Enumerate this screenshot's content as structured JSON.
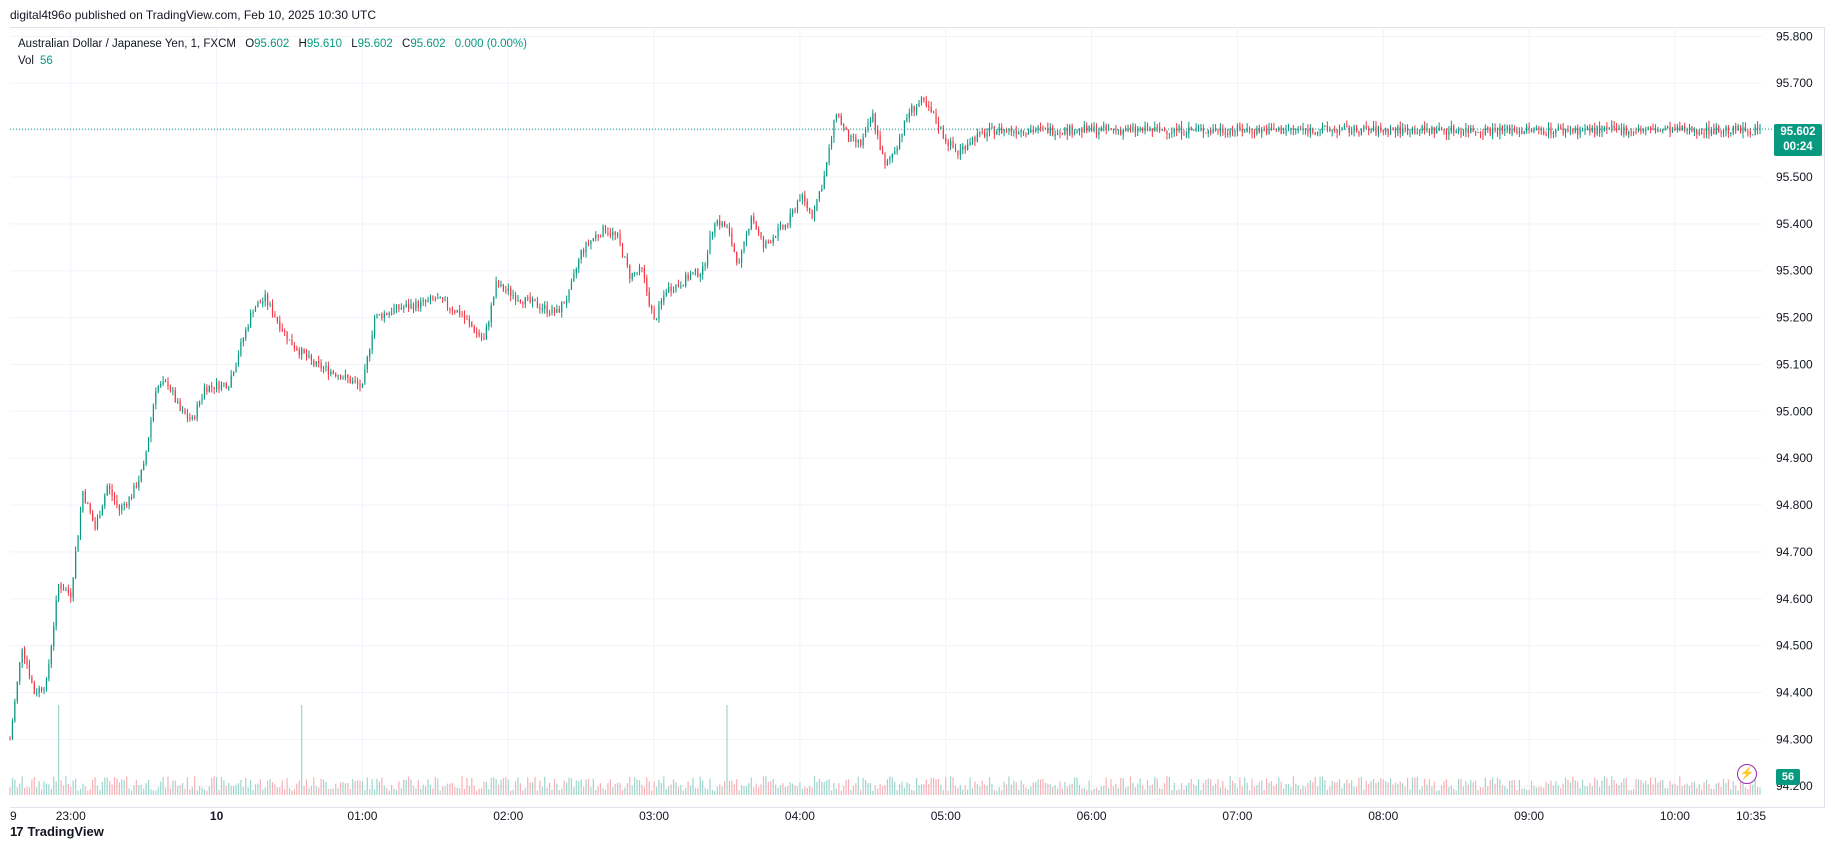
{
  "header": {
    "publisher": "digital4t96o published on TradingView.com, Feb 10, 2025 10:30 UTC"
  },
  "legend": {
    "symbol": "Australian Dollar / Japanese Yen, 1, FXCM",
    "open_label": "O",
    "open": "95.602",
    "high_label": "H",
    "high": "95.610",
    "low_label": "L",
    "low": "95.602",
    "close_label": "C",
    "close": "95.602",
    "change": "0.000 (0.00%)",
    "vol_label": "Vol",
    "vol": "56"
  },
  "price_tag": {
    "price": "95.602",
    "countdown": "00:24"
  },
  "volume_tag": "56",
  "footer": {
    "logo": "17",
    "brand": "TradingView"
  },
  "colors": {
    "up": "#089981",
    "down": "#f23645",
    "up_vol": "#9fd6cc",
    "down_vol": "#f7b1b7",
    "grid": "#f0f3fa"
  },
  "icons": {
    "flash": "lightning-icon"
  },
  "chart_data": {
    "type": "candlestick",
    "title": "Australian Dollar / Japanese Yen, 1, FXCM",
    "y_axis": {
      "ticks": [
        "95.800",
        "95.700",
        "95.600",
        "95.500",
        "95.400",
        "95.300",
        "95.200",
        "95.100",
        "95.000",
        "94.900",
        "94.800",
        "94.700",
        "94.600",
        "94.500",
        "94.400",
        "94.300",
        "94.200"
      ],
      "range": [
        94.177,
        95.82
      ]
    },
    "x_axis": {
      "ticks": [
        "9",
        "23:00",
        "10",
        "01:00",
        "02:00",
        "03:00",
        "04:00",
        "05:00",
        "06:00",
        "07:00",
        "08:00",
        "09:00",
        "10:00",
        "10:35"
      ]
    },
    "last_price": 95.602,
    "price_path": [
      {
        "time": "22:35",
        "price": 94.3
      },
      {
        "time": "22:40",
        "price": 94.5
      },
      {
        "time": "22:45",
        "price": 94.4
      },
      {
        "time": "22:50",
        "price": 94.42
      },
      {
        "time": "22:55",
        "price": 94.63
      },
      {
        "time": "23:00",
        "price": 94.61
      },
      {
        "time": "23:05",
        "price": 94.83
      },
      {
        "time": "23:10",
        "price": 94.75
      },
      {
        "time": "23:15",
        "price": 94.84
      },
      {
        "time": "23:20",
        "price": 94.79
      },
      {
        "time": "23:25",
        "price": 94.82
      },
      {
        "time": "23:30",
        "price": 94.88
      },
      {
        "time": "23:35",
        "price": 95.05
      },
      {
        "time": "23:40",
        "price": 95.06
      },
      {
        "time": "23:45",
        "price": 95.0
      },
      {
        "time": "23:50",
        "price": 94.98
      },
      {
        "time": "23:55",
        "price": 95.05
      },
      {
        "time": "00:05",
        "price": 95.06
      },
      {
        "time": "00:15",
        "price": 95.22
      },
      {
        "time": "00:20",
        "price": 95.24
      },
      {
        "time": "00:30",
        "price": 95.15
      },
      {
        "time": "00:40",
        "price": 95.1
      },
      {
        "time": "00:50",
        "price": 95.08
      },
      {
        "time": "01:00",
        "price": 95.05
      },
      {
        "time": "01:05",
        "price": 95.2
      },
      {
        "time": "01:15",
        "price": 95.22
      },
      {
        "time": "01:25",
        "price": 95.23
      },
      {
        "time": "01:30",
        "price": 95.24
      },
      {
        "time": "01:40",
        "price": 95.21
      },
      {
        "time": "01:50",
        "price": 95.15
      },
      {
        "time": "01:55",
        "price": 95.27
      },
      {
        "time": "02:05",
        "price": 95.24
      },
      {
        "time": "02:10",
        "price": 95.23
      },
      {
        "time": "02:15",
        "price": 95.22
      },
      {
        "time": "02:20",
        "price": 95.21
      },
      {
        "time": "02:25",
        "price": 95.25
      },
      {
        "time": "02:30",
        "price": 95.34
      },
      {
        "time": "02:35",
        "price": 95.37
      },
      {
        "time": "02:40",
        "price": 95.39
      },
      {
        "time": "02:45",
        "price": 95.37
      },
      {
        "time": "02:50",
        "price": 95.29
      },
      {
        "time": "02:55",
        "price": 95.3
      },
      {
        "time": "03:00",
        "price": 95.19
      },
      {
        "time": "03:05",
        "price": 95.26
      },
      {
        "time": "03:10",
        "price": 95.27
      },
      {
        "time": "03:15",
        "price": 95.29
      },
      {
        "time": "03:20",
        "price": 95.3
      },
      {
        "time": "03:25",
        "price": 95.41
      },
      {
        "time": "03:30",
        "price": 95.39
      },
      {
        "time": "03:35",
        "price": 95.31
      },
      {
        "time": "03:40",
        "price": 95.42
      },
      {
        "time": "03:45",
        "price": 95.35
      },
      {
        "time": "03:50",
        "price": 95.38
      },
      {
        "time": "03:55",
        "price": 95.4
      },
      {
        "time": "04:00",
        "price": 95.46
      },
      {
        "time": "04:05",
        "price": 95.42
      },
      {
        "time": "04:10",
        "price": 95.5
      },
      {
        "time": "04:15",
        "price": 95.64
      },
      {
        "time": "04:20",
        "price": 95.58
      },
      {
        "time": "04:25",
        "price": 95.57
      },
      {
        "time": "04:30",
        "price": 95.63
      },
      {
        "time": "04:35",
        "price": 95.52
      },
      {
        "time": "04:40",
        "price": 95.57
      },
      {
        "time": "04:45",
        "price": 95.64
      },
      {
        "time": "04:50",
        "price": 95.66
      },
      {
        "time": "04:55",
        "price": 95.63
      },
      {
        "time": "05:00",
        "price": 95.58
      },
      {
        "time": "05:05",
        "price": 95.55
      },
      {
        "time": "05:10",
        "price": 95.58
      },
      {
        "time": "05:15",
        "price": 95.59
      },
      {
        "time": "05:20",
        "price": 95.6
      },
      {
        "time": "05:25",
        "price": 95.6
      }
    ],
    "volume": {
      "last": 56,
      "spikes": [
        {
          "time": "22:55",
          "value": 3.2
        },
        {
          "time": "00:35",
          "value": 1.0
        },
        {
          "time": "03:30",
          "value": 1.0
        }
      ],
      "typical": 0.35
    }
  }
}
